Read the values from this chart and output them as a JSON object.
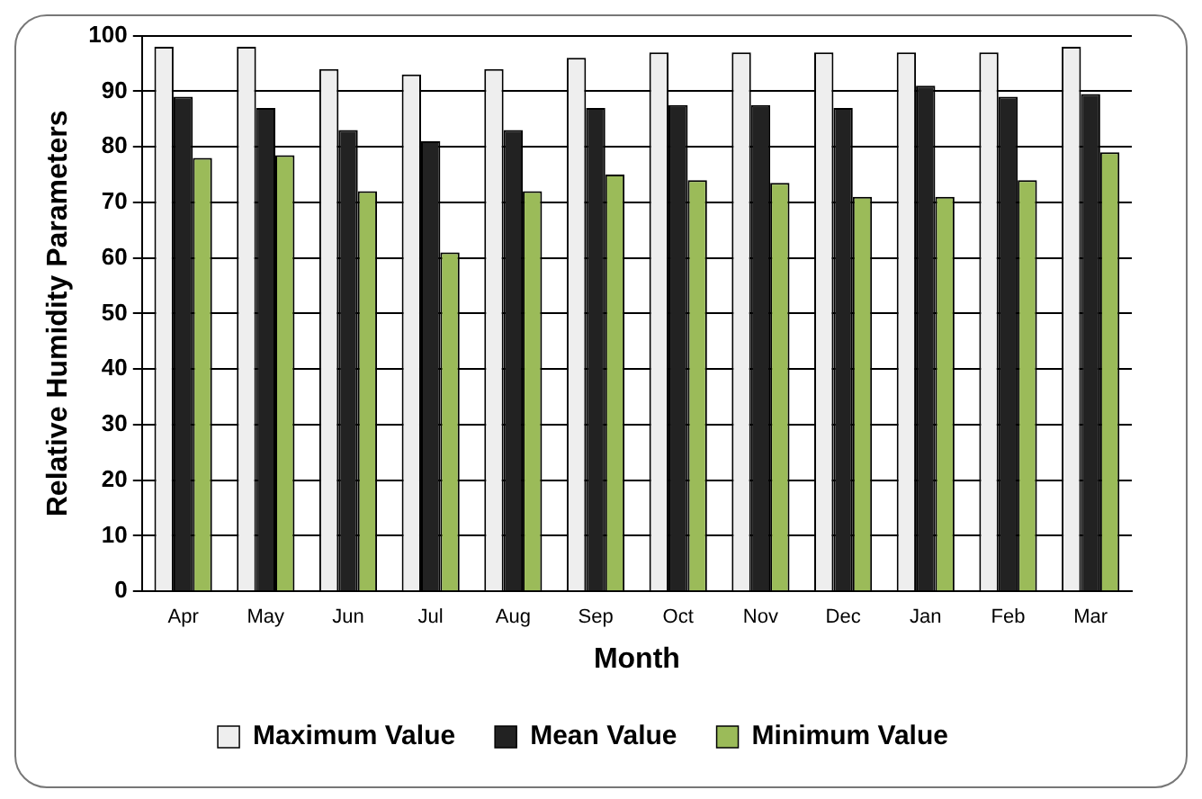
{
  "chart_data": {
    "type": "bar",
    "xlabel": "Month",
    "ylabel": "Relative Humidity Parameters",
    "categories": [
      "Apr",
      "May",
      "Jun",
      "Jul",
      "Aug",
      "Sep",
      "Oct",
      "Nov",
      "Dec",
      "Jan",
      "Feb",
      "Mar"
    ],
    "series": [
      {
        "name": "Maximum Value",
        "color": "#eeeeee",
        "values": [
          98,
          98,
          94,
          93,
          94,
          96,
          97,
          97,
          97,
          97,
          97,
          98
        ]
      },
      {
        "name": "Mean Value",
        "color": "#222222",
        "values": [
          89,
          87,
          83,
          81,
          83,
          87,
          87.5,
          87.5,
          87,
          91,
          89,
          89.5
        ]
      },
      {
        "name": "Minimum Value",
        "color": "#9bbb59",
        "values": [
          78,
          78.5,
          72,
          61,
          72,
          75,
          74,
          73.5,
          71,
          71,
          74,
          79
        ]
      }
    ],
    "ylim": [
      0,
      100
    ],
    "yticks": [
      0,
      10,
      20,
      30,
      40,
      50,
      60,
      70,
      80,
      90,
      100
    ],
    "grid": "y",
    "legend": "bottom"
  }
}
